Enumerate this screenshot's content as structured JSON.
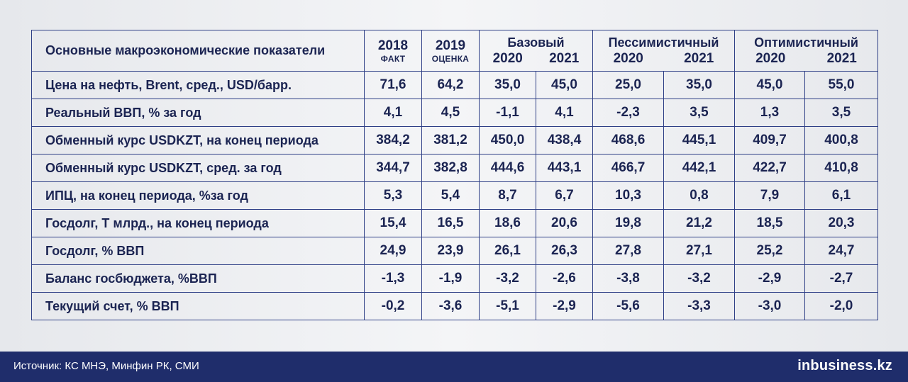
{
  "table": {
    "header": {
      "label": "Основные макроэкономические показатели",
      "col2018": {
        "year": "2018",
        "sub": "ФАКТ"
      },
      "col2019": {
        "year": "2019",
        "sub": "ОЦЕНКА"
      },
      "scenarios": [
        {
          "name": "Базовый",
          "years": [
            "2020",
            "2021"
          ]
        },
        {
          "name": "Пессимистичный",
          "years": [
            "2020",
            "2021"
          ]
        },
        {
          "name": "Оптимистичный",
          "years": [
            "2020",
            "2021"
          ]
        }
      ]
    },
    "rows": [
      {
        "label": "Цена на нефть, Brent, сред., USD/барр.",
        "values": [
          "71,6",
          "64,2",
          "35,0",
          "45,0",
          "25,0",
          "35,0",
          "45,0",
          "55,0"
        ]
      },
      {
        "label": "Реальный ВВП, % за год",
        "values": [
          "4,1",
          "4,5",
          "-1,1",
          "4,1",
          "-2,3",
          "3,5",
          "1,3",
          "3,5"
        ]
      },
      {
        "label": "Обменный курс USDKZT, на конец периода",
        "values": [
          "384,2",
          "381,2",
          "450,0",
          "438,4",
          "468,6",
          "445,1",
          "409,7",
          "400,8"
        ]
      },
      {
        "label": "Обменный курс USDKZT, сред. за год",
        "values": [
          "344,7",
          "382,8",
          "444,6",
          "443,1",
          "466,7",
          "442,1",
          "422,7",
          "410,8"
        ]
      },
      {
        "label": "ИПЦ, на конец периода, %за год",
        "values": [
          "5,3",
          "5,4",
          "8,7",
          "6,7",
          "10,3",
          "0,8",
          "7,9",
          "6,1"
        ]
      },
      {
        "label": "Госдолг, Т млрд., на конец периода",
        "values": [
          "15,4",
          "16,5",
          "18,6",
          "20,6",
          "19,8",
          "21,2",
          "18,5",
          "20,3"
        ]
      },
      {
        "label": "Госдолг, % ВВП",
        "values": [
          "24,9",
          "23,9",
          "26,1",
          "26,3",
          "27,8",
          "27,1",
          "25,2",
          "24,7"
        ]
      },
      {
        "label": "Баланс госбюджета, %ВВП",
        "values": [
          "-1,3",
          "-1,9",
          "-3,2",
          "-2,6",
          "-3,8",
          "-3,2",
          "-2,9",
          "-2,7"
        ]
      },
      {
        "label": "Текущий счет, % ВВП",
        "values": [
          "-0,2",
          "-3,6",
          "-5,1",
          "-2,9",
          "-5,6",
          "-3,3",
          "-3,0",
          "-2,0"
        ]
      }
    ]
  },
  "footer": {
    "source": "Источник: КС МНЭ, Минфин РК, СМИ",
    "logo": "inbusiness.kz"
  },
  "colors": {
    "text": "#1b2452",
    "border": "#2e3f86",
    "footer_bg": "#1f2d6b"
  }
}
